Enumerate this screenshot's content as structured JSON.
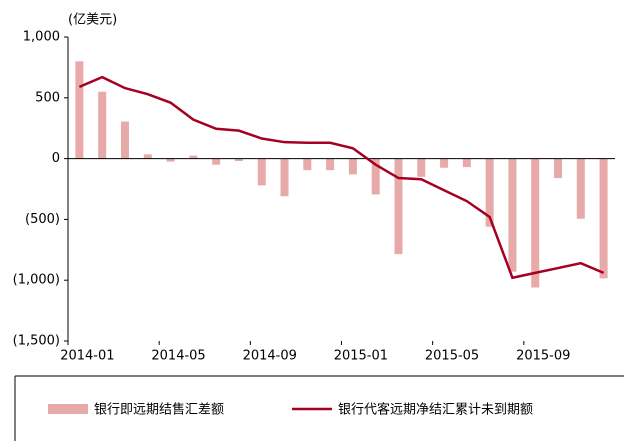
{
  "chart_data": {
    "type": "bar_line",
    "y_axis_label": "(亿美元)",
    "categories": [
      "2014-01",
      null,
      null,
      null,
      "2014-05",
      null,
      null,
      null,
      "2014-09",
      null,
      null,
      null,
      "2015-01",
      null,
      null,
      null,
      "2015-05",
      null,
      null,
      null,
      "2015-09",
      null,
      null,
      null
    ],
    "series": [
      {
        "name": "银行即远期结售汇差额",
        "type": "bar",
        "color": "#e8a9a9",
        "values": [
          800,
          550,
          305,
          35,
          -25,
          25,
          -50,
          -20,
          -220,
          -310,
          -95,
          -95,
          -130,
          -295,
          -785,
          -150,
          -75,
          -70,
          -560,
          -930,
          -1060,
          -160,
          -495,
          -985
        ]
      },
      {
        "name": "银行代客远期净结汇累计未到期额",
        "type": "line",
        "color": "#a50021",
        "values": [
          590,
          670,
          580,
          530,
          460,
          320,
          245,
          230,
          165,
          135,
          130,
          130,
          85,
          -50,
          -160,
          -170,
          -260,
          -350,
          -480,
          -980,
          -940,
          -900,
          -860,
          -940
        ]
      }
    ],
    "ylim": [
      -1500,
      1000
    ],
    "yticks": [
      {
        "value": 1000,
        "label": "1,000"
      },
      500,
      0,
      {
        "value": -500,
        "label": "(500)"
      },
      {
        "value": -1000,
        "label": "(1,000)"
      },
      {
        "value": -1500,
        "label": "(1,500)"
      }
    ],
    "negative_tick_color": "#e00000"
  }
}
